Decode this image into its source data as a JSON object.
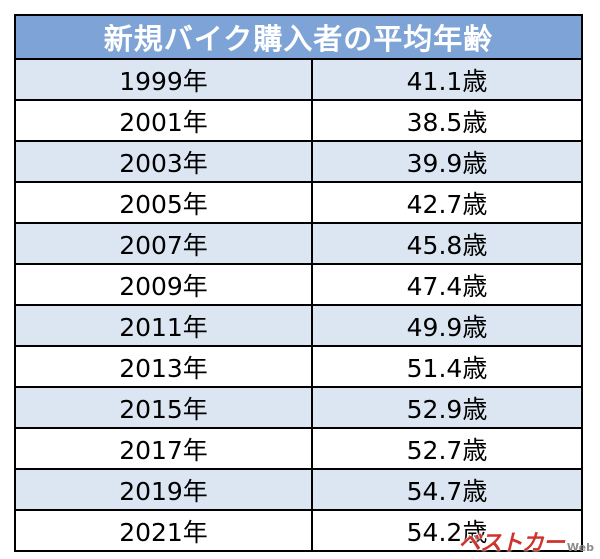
{
  "chart_data": {
    "type": "table",
    "title": "新規バイク購入者の平均年齢",
    "rows": [
      {
        "year": "1999年",
        "age": "41.1歳"
      },
      {
        "year": "2001年",
        "age": "38.5歳"
      },
      {
        "year": "2003年",
        "age": "39.9歳"
      },
      {
        "year": "2005年",
        "age": "42.7歳"
      },
      {
        "year": "2007年",
        "age": "45.8歳"
      },
      {
        "year": "2009年",
        "age": "47.4歳"
      },
      {
        "year": "2011年",
        "age": "49.9歳"
      },
      {
        "year": "2013年",
        "age": "51.4歳"
      },
      {
        "year": "2015年",
        "age": "52.9歳"
      },
      {
        "year": "2017年",
        "age": "52.7歳"
      },
      {
        "year": "2019年",
        "age": "54.7歳"
      },
      {
        "year": "2021年",
        "age": "54.2歳"
      }
    ],
    "colors": {
      "header_bg": "#7ea3d6",
      "row_shaded": "#dce6f2",
      "row_plain": "#ffffff"
    }
  },
  "watermark": {
    "logo": "ベストカー",
    "suffix": "Web"
  }
}
